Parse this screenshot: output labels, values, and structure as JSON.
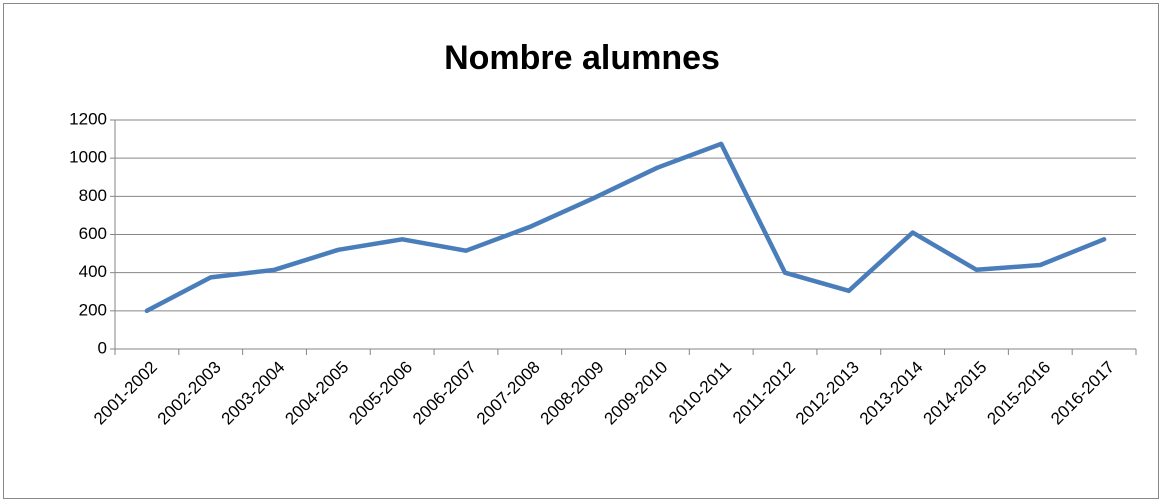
{
  "chart_data": {
    "type": "line",
    "title": "Nombre alumnes",
    "categories": [
      "2001-2002",
      "2002-2003",
      "2003-2004",
      "2004-2005",
      "2005-2006",
      "2006-2007",
      "2007-2008",
      "2008-2009",
      "2009-2010",
      "2010-2011",
      "2011-2012",
      "2012-2013",
      "2013-2014",
      "2014-2015",
      "2015-2016",
      "2016-2017"
    ],
    "values": [
      200,
      375,
      415,
      520,
      575,
      515,
      640,
      790,
      950,
      1075,
      400,
      305,
      610,
      415,
      440,
      575
    ],
    "color": "#4a7ebb",
    "ylim": [
      0,
      1200
    ],
    "yticks": [
      0,
      200,
      400,
      600,
      800,
      1000,
      1200
    ],
    "grid": true
  }
}
